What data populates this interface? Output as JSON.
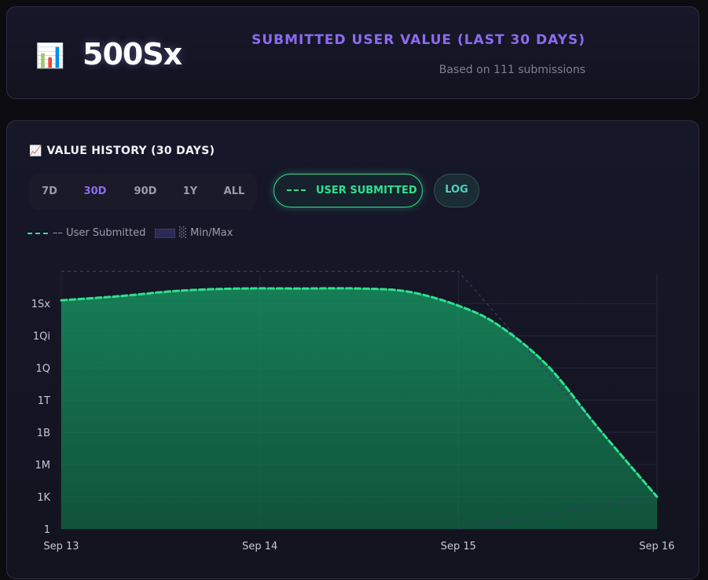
{
  "header": {
    "icon": "bar-chart-icon",
    "icon_glyph": "📊",
    "value": "500Sx",
    "title": "SUBMITTED USER VALUE (LAST 30 DAYS)",
    "subtitle": "Based on 111 submissions"
  },
  "history": {
    "icon": "trend-chart-icon",
    "icon_glyph": "📈",
    "title": "VALUE HISTORY (30 DAYS)",
    "ranges": [
      "7D",
      "30D",
      "90D",
      "1Y",
      "ALL"
    ],
    "active_range": "30D",
    "series_button": "USER SUBMITTED",
    "log_button": "LOG"
  },
  "legend": {
    "user_submitted": "–– User Submitted",
    "minmax": "░ Min/Max"
  },
  "colors": {
    "accent_purple": "#8b6cf2",
    "series_green": "#2fe08d",
    "log_teal": "#4fd0c0",
    "minmax_line": "#3a3a6a"
  },
  "chart_data": {
    "type": "area",
    "y_scale": "log",
    "x_tick_labels": [
      "Sep 13",
      "Sep 14",
      "Sep 15",
      "Sep 16"
    ],
    "y_tick_labels": [
      "1",
      "1K",
      "1M",
      "1B",
      "1T",
      "1Q",
      "1Qi",
      "1Sx"
    ],
    "y_tick_log10": [
      0,
      3,
      6,
      9,
      12,
      15,
      18,
      21
    ],
    "ylim_log10": [
      0,
      23.8
    ],
    "grid": true,
    "legend_position": "top-left",
    "series": [
      {
        "name": "User Submitted",
        "style": "dashed",
        "fill": true,
        "x_days": [
          0,
          0.3,
          0.6,
          0.9,
          1.2,
          1.5,
          1.75,
          2.0,
          2.2,
          2.45,
          2.7,
          3.0
        ],
        "log10_values": [
          21.3,
          21.7,
          22.2,
          22.4,
          22.4,
          22.4,
          22.1,
          20.8,
          19.0,
          15.2,
          9.5,
          3.0
        ]
      },
      {
        "name": "Max",
        "style": "dashed-thin",
        "x_days": [
          0,
          2.0,
          3.0
        ],
        "log10_values": [
          24.0,
          24.0,
          3.0
        ]
      },
      {
        "name": "Min",
        "style": "dashed-thin",
        "x_days": [
          2.0,
          3.0
        ],
        "log10_values": [
          0,
          3.0
        ]
      }
    ]
  }
}
